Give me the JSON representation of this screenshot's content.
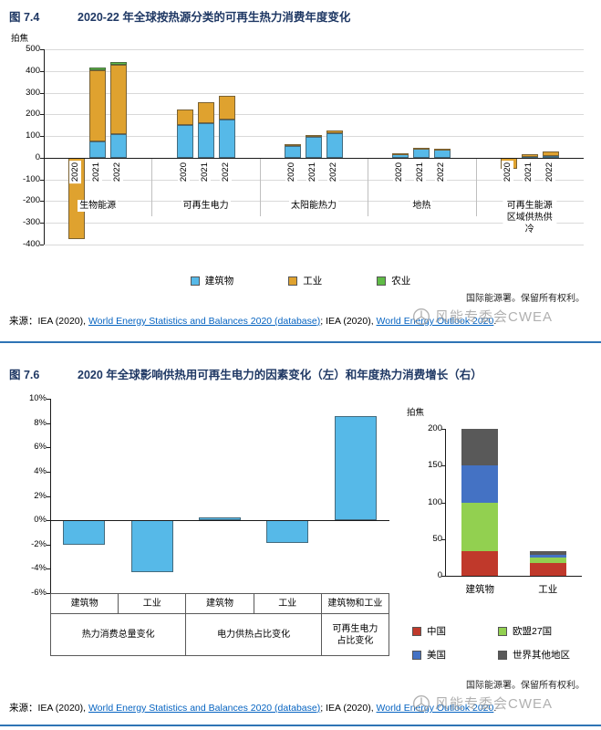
{
  "fig74": {
    "fig_label": "图 7.4",
    "title": "2020-22 年全球按热源分类的可再生热力消费年度变化",
    "note": "国际能源署。保留所有权利。",
    "source_prefix": "来源：",
    "source_part1": "IEA (2020), ",
    "source_link1": "World Energy Statistics and Balances 2020 (database)",
    "source_mid": "; IEA (2020), ",
    "source_link2": "World Energy Outlook 2020",
    "source_suffix": ".",
    "watermark": "风能专委会CWEA"
  },
  "fig76": {
    "fig_label": "图 7.6",
    "title": "2020 年全球影响供热用可再生电力的因素变化（左）和年度热力消费增长（右）",
    "note": "国际能源署。保留所有权利。",
    "source_prefix": "来源：",
    "source_part1": "IEA (2020), ",
    "source_link1": "World Energy Statistics and Balances 2020 (database)",
    "source_mid": "; IEA (2020), ",
    "source_link2": "World Energy Outlook 2020",
    "source_suffix": ".",
    "watermark": "风能专委会CWEA"
  },
  "chart_data": [
    {
      "id": "fig74",
      "type": "bar",
      "stacked": true,
      "title": "2020-22 年全球按热源分类的可再生热力消费年度变化",
      "ylabel": "拍焦",
      "ylim": [
        -400,
        500
      ],
      "ytick_step": 100,
      "grid": true,
      "legend_position": "bottom",
      "series": [
        {
          "name": "建筑物",
          "color": "#56b9e8"
        },
        {
          "name": "工业",
          "color": "#dfa22f"
        },
        {
          "name": "农业",
          "color": "#5fbb46"
        }
      ],
      "groups": [
        {
          "label": [
            "生物能源"
          ],
          "bars": [
            {
              "x": "2020",
              "values": [
                0,
                -375,
                0
              ]
            },
            {
              "x": "2021",
              "values": [
                75,
                330,
                12
              ]
            },
            {
              "x": "2022",
              "values": [
                110,
                318,
                12
              ]
            }
          ]
        },
        {
          "label": [
            "可再生电力"
          ],
          "bars": [
            {
              "x": "2020",
              "values": [
                150,
                73,
                0
              ]
            },
            {
              "x": "2021",
              "values": [
                160,
                95,
                0
              ]
            },
            {
              "x": "2022",
              "values": [
                175,
                110,
                0
              ]
            }
          ]
        },
        {
          "label": [
            "太阳能热力"
          ],
          "bars": [
            {
              "x": "2020",
              "values": [
                55,
                6,
                0
              ]
            },
            {
              "x": "2021",
              "values": [
                95,
                10,
                0
              ]
            },
            {
              "x": "2022",
              "values": [
                113,
                12,
                0
              ]
            }
          ]
        },
        {
          "label": [
            "地热"
          ],
          "bars": [
            {
              "x": "2020",
              "values": [
                20,
                2,
                0
              ]
            },
            {
              "x": "2021",
              "values": [
                42,
                5,
                0
              ]
            },
            {
              "x": "2022",
              "values": [
                36,
                5,
                0
              ]
            }
          ]
        },
        {
          "label": [
            "可再生能源",
            "区域供热供冷"
          ],
          "bars": [
            {
              "x": "2020",
              "values": [
                0,
                -50,
                0
              ]
            },
            {
              "x": "2021",
              "values": [
                3,
                13,
                0
              ]
            },
            {
              "x": "2022",
              "values": [
                10,
                20,
                0
              ]
            }
          ]
        }
      ]
    },
    {
      "id": "fig76-left",
      "type": "bar",
      "ylim": [
        -6,
        10
      ],
      "yticks": [
        10,
        8,
        6,
        4,
        2,
        0,
        -2,
        -4,
        -6
      ],
      "ytick_suffix": "%",
      "bar_color": "#56b9e8",
      "bars": [
        {
          "label": "建筑物",
          "group": "热力消费总量变化",
          "value": -2.0
        },
        {
          "label": "工业",
          "group": "热力消费总量变化",
          "value": -4.3
        },
        {
          "label": "建筑物",
          "group": "电力供热占比变化",
          "value": 0.2
        },
        {
          "label": "工业",
          "group": "电力供热占比变化",
          "value": -1.9
        },
        {
          "label": "建筑物和工业",
          "group": "可再生电力占比变化",
          "value": 8.6
        }
      ],
      "col_labels": [
        "建筑物",
        "工业",
        "建筑物",
        "工业",
        "建筑物和工业"
      ],
      "group_cells": [
        {
          "lines": [
            "热力消费总量变化"
          ],
          "span": 2
        },
        {
          "lines": [
            "电力供热占比变化"
          ],
          "span": 2
        },
        {
          "lines": [
            "可再生电力",
            "占比变化"
          ],
          "span": 1
        }
      ]
    },
    {
      "id": "fig76-right",
      "type": "bar",
      "stacked": true,
      "ylabel": "拍焦",
      "ylim": [
        0,
        200
      ],
      "yticks": [
        200,
        150,
        100,
        50,
        0
      ],
      "categories": [
        "建筑物",
        "工业"
      ],
      "series": [
        {
          "name": "中国",
          "color": "#c0392b",
          "values": [
            33,
            17
          ]
        },
        {
          "name": "欧盟27国",
          "color": "#92d050",
          "values": [
            67,
            8
          ]
        },
        {
          "name": "美国",
          "color": "#4472c4",
          "values": [
            50,
            3
          ]
        },
        {
          "name": "世界其他地区",
          "color": "#595959",
          "values": [
            50,
            5
          ]
        }
      ]
    }
  ]
}
